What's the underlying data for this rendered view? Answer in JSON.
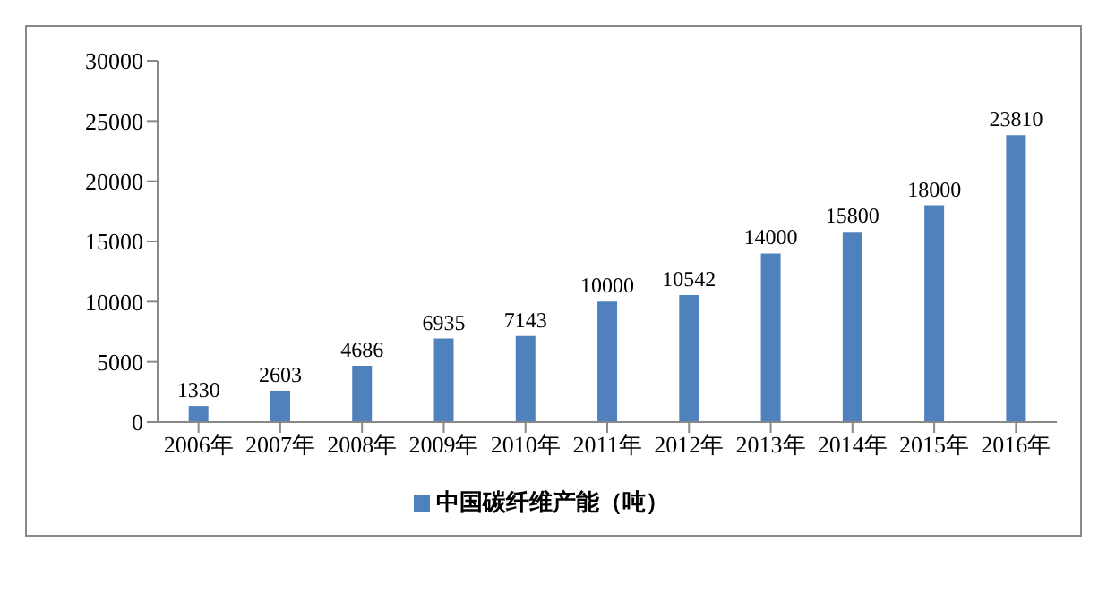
{
  "chart_data": {
    "type": "bar",
    "categories": [
      "2006年",
      "2007年",
      "2008年",
      "2009年",
      "2010年",
      "2011年",
      "2012年",
      "2013年",
      "2014年",
      "2015年",
      "2016年"
    ],
    "series": [
      {
        "name": "中国碳纤维产能（吨）",
        "color": "#4f81bd",
        "values": [
          1330,
          2603,
          4686,
          6935,
          7143,
          10000,
          10542,
          14000,
          15800,
          18000,
          23810
        ]
      }
    ],
    "ylim": [
      0,
      30000
    ],
    "yticks": [
      0,
      5000,
      10000,
      15000,
      20000,
      25000,
      30000
    ],
    "data_labels": true,
    "legend": "bottom",
    "grid": false
  }
}
